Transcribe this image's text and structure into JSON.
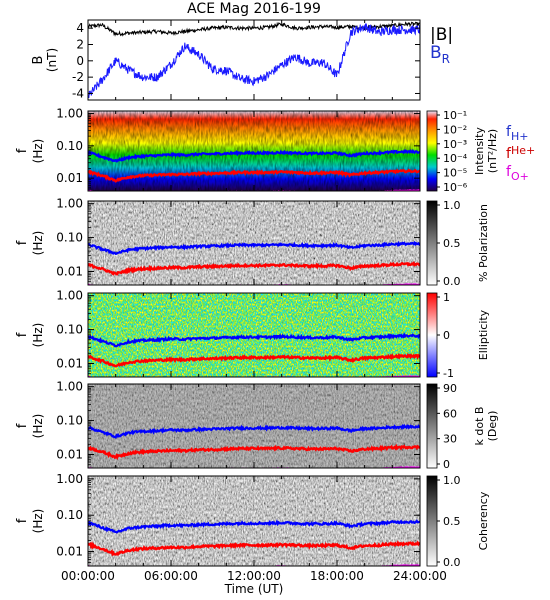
{
  "figure_title": "ACE Mag 2016-199",
  "x_axis": {
    "label": "Time (UT)",
    "ticks": [
      "00:00:00",
      "06:00:00",
      "12:00:00",
      "18:00:00",
      "24:00:00"
    ],
    "range_hours": [
      0,
      24
    ]
  },
  "freq_axis": {
    "label_f": "f",
    "label_unit": "(Hz)",
    "ticks": [
      {
        "label": "1.00",
        "value": 1.0
      },
      {
        "label": "0.10",
        "value": 0.1
      },
      {
        "label": "0.01",
        "value": 0.01
      }
    ],
    "range": [
      0.004,
      1.2
    ],
    "scale": "log"
  },
  "panel1": {
    "ylabel_main": "B",
    "ylabel_unit": "(nT)",
    "ticks": [
      "4",
      "2",
      "0",
      "-2",
      "-4"
    ],
    "legend": {
      "total": "|B|",
      "radial": "B",
      "radial_sub": "R"
    }
  },
  "gyro_legend": {
    "f": "f",
    "h_sub": "H+",
    "he_sub": "He+",
    "o_sub": "O+"
  },
  "colorbars": [
    {
      "label": "Intensity",
      "label2": "(nT²/Hz)",
      "ticks": [
        "10⁻¹",
        "10⁻²",
        "10⁻³",
        "10⁻⁴",
        "10⁻⁵",
        "10⁻⁶"
      ]
    },
    {
      "label": "% Polarization",
      "ticks": [
        "1.0",
        "0.5",
        "0.0"
      ]
    },
    {
      "label": "Ellipticity",
      "ticks": [
        "1",
        "0",
        "-1"
      ]
    },
    {
      "label": "k dot B",
      "label2": "(Deg)",
      "ticks": [
        "90",
        "60",
        "30",
        "0"
      ]
    },
    {
      "label": "Coherency",
      "ticks": [
        "1.0",
        "0.5",
        "0.0"
      ]
    }
  ],
  "colors": {
    "total_field": "#000000",
    "radial_field": "#1a1aff",
    "f_h": "#0000ff",
    "f_he": "#ff0000",
    "f_o": "#ff00ff",
    "legend_blue": "#2233cc",
    "legend_red": "#cc0000",
    "legend_magenta": "#dd00dd"
  },
  "chart_data": {
    "type": "line",
    "title": "ACE Mag 2016-199",
    "xlabel": "Time (UT)",
    "x_hours": [
      0,
      1,
      2,
      3,
      4,
      5,
      6,
      7,
      8,
      9,
      10,
      11,
      12,
      13,
      14,
      15,
      16,
      17,
      18,
      19,
      20,
      21,
      22,
      23,
      24
    ],
    "series": [
      {
        "name": "|B|",
        "unit": "nT",
        "values": [
          4.2,
          4.4,
          3.3,
          3.4,
          3.5,
          3.6,
          3.4,
          3.6,
          3.8,
          4.0,
          4.1,
          4.0,
          4.0,
          4.1,
          4.5,
          4.0,
          4.1,
          4.2,
          4.1,
          4.2,
          4.0,
          4.2,
          4.3,
          4.5,
          4.5
        ]
      },
      {
        "name": "B_R",
        "unit": "nT",
        "values": [
          -4.4,
          -2.4,
          0.0,
          -1.2,
          -2.0,
          -2.0,
          -0.4,
          1.8,
          0.8,
          -1.0,
          -1.2,
          -2.2,
          -2.5,
          -1.8,
          -0.5,
          0.5,
          -0.3,
          -0.2,
          -1.8,
          3.5,
          4.2,
          3.5,
          3.8,
          3.8,
          3.8
        ]
      },
      {
        "name": "f_H+",
        "unit": "Hz",
        "values": [
          0.063,
          0.046,
          0.034,
          0.044,
          0.048,
          0.05,
          0.053,
          0.052,
          0.055,
          0.056,
          0.058,
          0.06,
          0.06,
          0.06,
          0.062,
          0.06,
          0.058,
          0.058,
          0.06,
          0.05,
          0.058,
          0.06,
          0.064,
          0.066,
          0.065
        ]
      },
      {
        "name": "f_He+",
        "unit": "Hz",
        "values": [
          0.016,
          0.012,
          0.0085,
          0.011,
          0.012,
          0.0125,
          0.013,
          0.013,
          0.0138,
          0.014,
          0.0145,
          0.015,
          0.015,
          0.015,
          0.0155,
          0.015,
          0.0145,
          0.0145,
          0.015,
          0.0125,
          0.0145,
          0.015,
          0.016,
          0.0165,
          0.0165
        ]
      },
      {
        "name": "f_O+",
        "unit": "Hz",
        "values": [
          0.004,
          0.0035,
          0.0033,
          0.0034,
          0.0035,
          0.0035,
          0.0036,
          0.0036,
          0.0037,
          0.0037,
          0.0038,
          0.0038,
          0.0038,
          0.0038,
          0.0039,
          0.0038,
          0.0037,
          0.0037,
          0.0038,
          0.0036,
          0.0038,
          0.0038,
          0.004,
          0.0041,
          0.0041
        ]
      }
    ],
    "panel1_ylim": [
      -4.8,
      5.0
    ],
    "freq_ylim": [
      0.004,
      1.2
    ]
  }
}
